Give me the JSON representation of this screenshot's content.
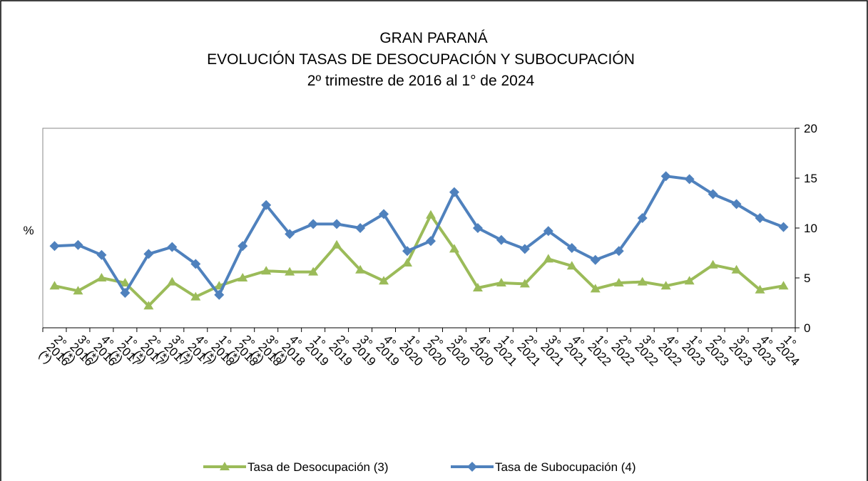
{
  "chart_data": {
    "type": "line",
    "title": "GRAN PARANÁ",
    "subtitle": "EVOLUCIÓN TASAS DE DESOCUPACIÓN Y SUBOCUPACIÓN",
    "subtitle2": "2º trimestre de 2016 al 1° de 2024",
    "y_label": "%",
    "categories": [
      "2°\n2016\n(*)",
      "3°\n2016\n(*)",
      "4°\n2016\n(*)",
      "1°\n2017\n(*)",
      "2°\n2017\n(*)",
      "3°\n2017\n(*)",
      "4°\n2017\n(*)",
      "1°\n2018\n(*)",
      "2°\n2018\n(*)",
      "3°\n2018\n(*)",
      "4°\n2018\n(*)",
      "1°\n2019",
      "2°\n2019",
      "3°\n2019",
      "4°\n2019",
      "1°\n2020",
      "2°\n2020",
      "3°\n2020",
      "4°\n2020",
      "1°\n2021",
      "2°\n2021",
      "3°\n2021",
      "4°\n2021",
      "1°\n2022",
      "2°\n2022",
      "3°\n2022",
      "4°\n2022",
      "1°\n2023",
      "2°\n2023",
      "3°\n2023",
      "4°\n2023",
      "1°\n2024"
    ],
    "series": [
      {
        "name": "Tasa de Desocupación (3)",
        "color": "#9bbb59",
        "marker": "triangle",
        "values": [
          4.2,
          3.7,
          5.0,
          4.5,
          2.2,
          4.6,
          3.1,
          4.2,
          5.0,
          5.7,
          5.6,
          5.6,
          8.3,
          5.8,
          4.7,
          6.5,
          11.3,
          7.9,
          4.0,
          4.5,
          4.4,
          6.9,
          6.2,
          3.9,
          4.5,
          4.6,
          4.2,
          4.7,
          6.3,
          5.8,
          3.8,
          4.2
        ]
      },
      {
        "name": "Tasa de Subocupación (4)",
        "color": "#4f81bd",
        "marker": "diamond",
        "values": [
          8.2,
          8.3,
          7.3,
          3.5,
          7.4,
          8.1,
          6.4,
          3.3,
          8.2,
          12.3,
          9.4,
          10.4,
          10.4,
          10.0,
          11.4,
          7.7,
          8.7,
          13.6,
          10.0,
          8.8,
          7.9,
          9.7,
          8.0,
          6.8,
          7.7,
          11.0,
          15.2,
          14.9,
          13.4,
          12.4,
          11.0,
          10.1
        ]
      }
    ],
    "ylim": [
      0,
      20
    ],
    "yticks": [
      0,
      5,
      10,
      15,
      20
    ],
    "y_axis_side": "right",
    "grid": false,
    "legend": "bottom"
  }
}
